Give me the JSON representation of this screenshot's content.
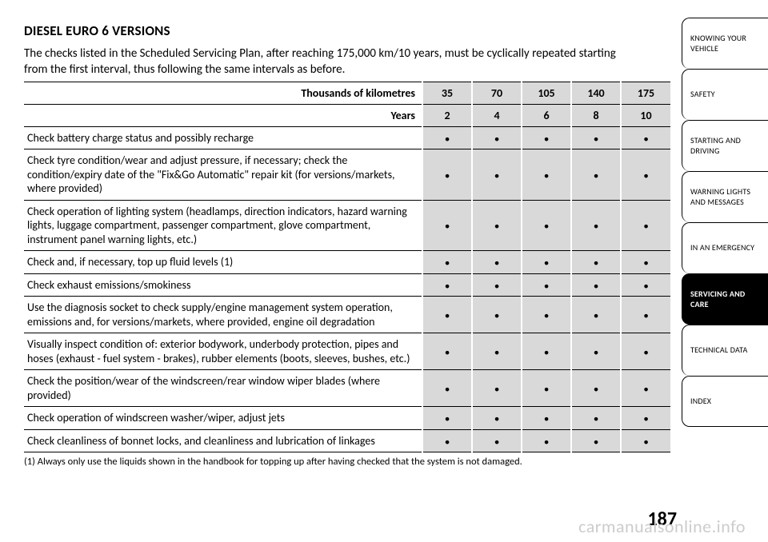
{
  "title": "DIESEL EURO 6 VERSIONS",
  "intro": "The checks listed in the Scheduled Servicing Plan, after reaching 175,000 km/10 years, must be cyclically repeated starting from the first interval, thus following the same intervals as before.",
  "header_rows": [
    {
      "label": "Thousands of kilometres",
      "values": [
        "35",
        "70",
        "105",
        "140",
        "175"
      ]
    },
    {
      "label": "Years",
      "values": [
        "2",
        "4",
        "6",
        "8",
        "10"
      ]
    }
  ],
  "rows": [
    {
      "desc": "Check battery charge status and possibly recharge",
      "marks": [
        true,
        true,
        true,
        true,
        true
      ]
    },
    {
      "desc": "Check tyre condition/wear and adjust pressure, if necessary; check the condition/expiry date of the \"Fix&Go Automatic\" repair kit (for versions/markets, where provided)",
      "marks": [
        true,
        true,
        true,
        true,
        true
      ]
    },
    {
      "desc": "Check operation of lighting system (headlamps, direction indicators, hazard warning lights, luggage compartment, passenger compartment, glove compartment, instrument panel warning lights, etc.)",
      "marks": [
        true,
        true,
        true,
        true,
        true
      ]
    },
    {
      "desc": "Check and, if necessary, top up fluid levels (1)",
      "marks": [
        true,
        true,
        true,
        true,
        true
      ]
    },
    {
      "desc": "Check exhaust emissions/smokiness",
      "marks": [
        true,
        true,
        true,
        true,
        true
      ]
    },
    {
      "desc": "Use the diagnosis socket to check supply/engine management system operation, emissions and, for versions/markets, where provided, engine oil degradation",
      "marks": [
        true,
        true,
        true,
        true,
        true
      ]
    },
    {
      "desc": "Visually inspect condition of: exterior bodywork, underbody protection, pipes and hoses (exhaust - fuel system - brakes), rubber elements (boots, sleeves, bushes, etc.)",
      "marks": [
        true,
        true,
        true,
        true,
        true
      ]
    },
    {
      "desc": "Check the position/wear of the windscreen/rear window wiper blades (where provided)",
      "marks": [
        true,
        true,
        true,
        true,
        true
      ]
    },
    {
      "desc": "Check operation of windscreen washer/wiper, adjust jets",
      "marks": [
        true,
        true,
        true,
        true,
        true
      ]
    },
    {
      "desc": "Check cleanliness of bonnet locks, and cleanliness and lubrication of linkages",
      "marks": [
        true,
        true,
        true,
        true,
        true
      ]
    }
  ],
  "footnote": "(1) Always only use the liquids shown in the handbook for topping up after having checked that the system is not damaged.",
  "tabs": [
    {
      "label": "KNOWING YOUR VEHICLE",
      "active": false
    },
    {
      "label": "SAFETY",
      "active": false
    },
    {
      "label": "STARTING AND DRIVING",
      "active": false
    },
    {
      "label": "WARNING LIGHTS AND MESSAGES",
      "active": false
    },
    {
      "label": "IN AN EMERGENCY",
      "active": false
    },
    {
      "label": "SERVICING AND CARE",
      "active": true
    },
    {
      "label": "TECHNICAL DATA",
      "active": false
    },
    {
      "label": "INDEX",
      "active": false
    }
  ],
  "page_number": "187",
  "watermark": "carmanualsonline.info",
  "colors": {
    "header_cell_bg": "#d9d9d9",
    "text": "#000000",
    "active_tab_bg": "#000000",
    "active_tab_fg": "#ffffff"
  }
}
